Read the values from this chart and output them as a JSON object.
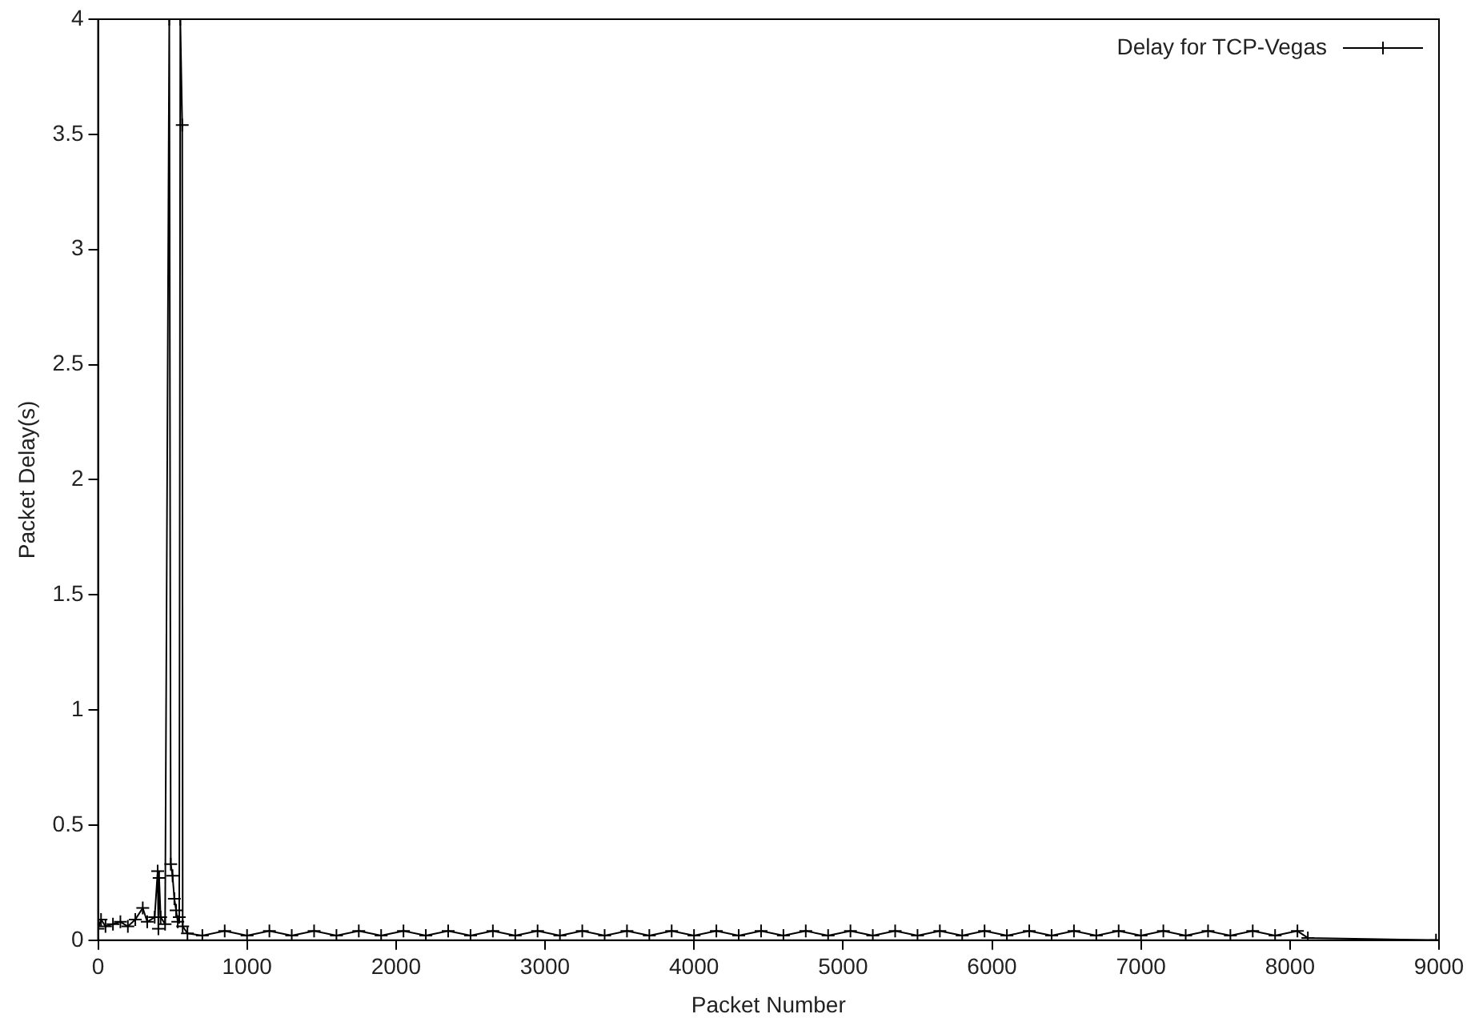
{
  "chart_data": {
    "type": "line",
    "xlabel": "Packet Number",
    "ylabel": "Packet Delay(s)",
    "xlim": [
      0,
      9000
    ],
    "ylim": [
      0,
      4
    ],
    "xticks": [
      0,
      1000,
      2000,
      3000,
      4000,
      5000,
      6000,
      7000,
      8000,
      9000
    ],
    "yticks": [
      0,
      0.5,
      1,
      1.5,
      2,
      2.5,
      3,
      3.5,
      4
    ],
    "grid": false,
    "legend": "top right",
    "marker": "cross",
    "line_style": "solid",
    "series": [
      {
        "name": "Delay for TCP-Vegas",
        "color": "#000000",
        "x": [
          0,
          20,
          50,
          100,
          150,
          200,
          250,
          300,
          330,
          380,
          400,
          405,
          410,
          420,
          450,
          478,
          488,
          500,
          512,
          524,
          535,
          545,
          552,
          565,
          568,
          600,
          700,
          850,
          1000,
          1150,
          1300,
          1450,
          1600,
          1750,
          1900,
          2050,
          2200,
          2350,
          2500,
          2650,
          2800,
          2950,
          3100,
          3250,
          3400,
          3550,
          3700,
          3850,
          4000,
          4150,
          4300,
          4450,
          4600,
          4750,
          4900,
          5050,
          5200,
          5350,
          5500,
          5650,
          5800,
          5950,
          6100,
          6250,
          6400,
          6550,
          6700,
          6850,
          7000,
          7150,
          7300,
          7450,
          7600,
          7750,
          7900,
          8050,
          8120,
          8980
        ],
        "values": [
          0.05,
          0.09,
          0.06,
          0.07,
          0.08,
          0.06,
          0.09,
          0.14,
          0.08,
          0.1,
          0.3,
          0.05,
          0.27,
          0.1,
          0.07,
          4,
          0.33,
          0.28,
          0.18,
          0.13,
          0.08,
          0.1,
          4,
          3.54,
          0.06,
          0.03,
          0.02,
          0.04,
          0.02,
          0.04,
          0.02,
          0.04,
          0.02,
          0.04,
          0.02,
          0.04,
          0.02,
          0.04,
          0.02,
          0.04,
          0.02,
          0.04,
          0.02,
          0.04,
          0.02,
          0.04,
          0.02,
          0.04,
          0.02,
          0.04,
          0.02,
          0.04,
          0.02,
          0.04,
          0.02,
          0.04,
          0.02,
          0.04,
          0.02,
          0.04,
          0.02,
          0.04,
          0.02,
          0.04,
          0.02,
          0.04,
          0.02,
          0.04,
          0.02,
          0.04,
          0.02,
          0.04,
          0.02,
          0.04,
          0.02,
          0.04,
          0.01,
          0
        ]
      }
    ]
  }
}
